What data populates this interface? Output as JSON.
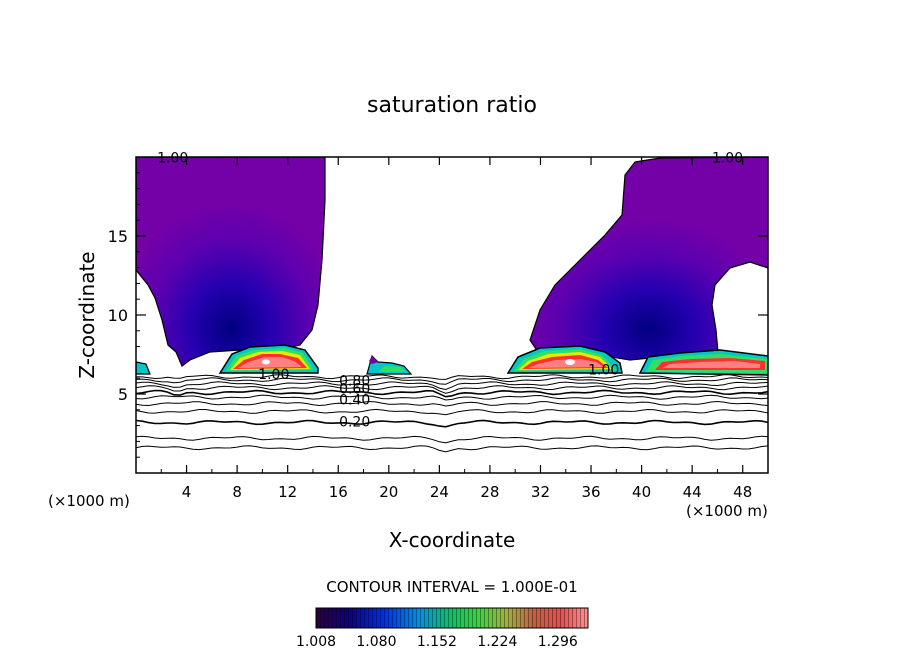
{
  "chart_data": {
    "type": "contour",
    "title": "saturation ratio",
    "xlabel": "X-coordinate",
    "ylabel": "Z-coordinate",
    "x_unit_left": "(×1000 m)",
    "x_unit_right": "(×1000 m)",
    "xlim": [
      0,
      50
    ],
    "ylim": [
      0,
      20
    ],
    "x_ticks": [
      "4",
      "8",
      "12",
      "16",
      "20",
      "24",
      "28",
      "32",
      "36",
      "40",
      "44",
      "48"
    ],
    "y_ticks": [
      "5",
      "10",
      "15"
    ],
    "contour_labels": [
      {
        "text": "1.00",
        "x": 2.9,
        "z": 19.9
      },
      {
        "text": "1.00",
        "x": 46.8,
        "z": 19.9
      },
      {
        "text": "1.00",
        "x": 10.9,
        "z": 6.2
      },
      {
        "text": "1.00",
        "x": 37.0,
        "z": 6.5
      },
      {
        "text": "0.80",
        "x": 17.3,
        "z": 5.8
      },
      {
        "text": "0.60",
        "x": 17.3,
        "z": 5.3
      },
      {
        "text": "0.40",
        "x": 17.3,
        "z": 4.6
      },
      {
        "text": "0.20",
        "x": 17.3,
        "z": 3.2
      }
    ],
    "contour_interval_text": "CONTOUR INTERVAL = 1.000E-01",
    "colorbar": {
      "labels": [
        "1.008",
        "1.080",
        "1.152",
        "1.224",
        "1.296"
      ],
      "range": [
        1.008,
        1.332
      ]
    },
    "colors": {
      "subsaturated": "#ffffff",
      "low": "#7400a8",
      "mid": "#3000b4",
      "high_blue": "#000090",
      "cyan": "#00c8c8",
      "green": "#30e060",
      "yellow": "#e8e800",
      "red": "#ff3030",
      "salmon": "#ff8080"
    }
  }
}
